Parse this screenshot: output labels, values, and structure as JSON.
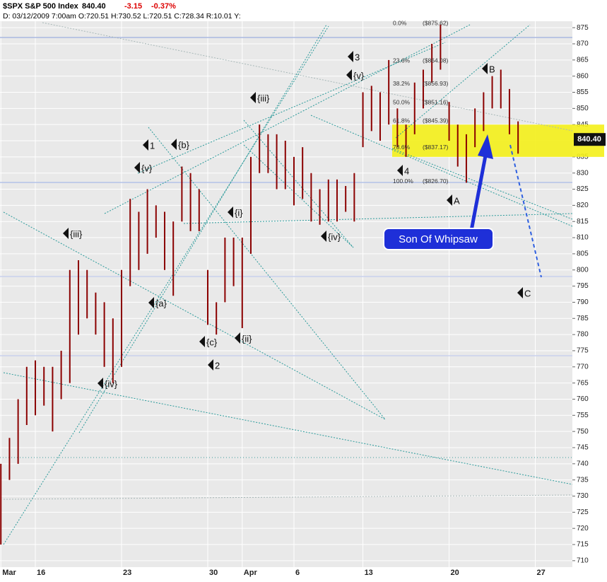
{
  "chart_data": {
    "type": "ohlc",
    "title": "$SPX S&P 500 Index",
    "last": "840.40",
    "change": "-3.15",
    "change_pct": "-0.37%",
    "info": "D: 03/12/2009  7:00am  O:720.51  H:730.52  L:720.51  C:728.34  R:10.01  Y:",
    "price_box": {
      "value": 840.4,
      "label": "840.40"
    },
    "callout": "Son Of Whipsaw",
    "color": "#8b0000",
    "x": [
      0,
      0.5,
      1,
      1.5,
      2,
      2.5,
      3,
      3.5,
      4,
      4.5,
      5,
      5.5,
      6,
      6.5,
      7,
      7.5,
      8,
      8.5,
      9,
      9.5,
      10,
      10.5,
      11,
      11.5,
      12,
      12.5,
      13,
      13.5,
      14,
      14.5,
      15,
      15.5,
      16,
      16.5,
      17,
      17.5,
      18,
      18.5,
      19,
      19.5,
      20,
      20.5,
      21,
      21.5,
      22,
      22.5,
      23,
      23.5,
      24,
      24.5,
      25,
      25.5,
      26,
      26.5,
      27,
      27.5,
      28,
      28.5,
      29,
      29.5,
      30
    ],
    "high": [
      740,
      748,
      760,
      770,
      772,
      770,
      770,
      775,
      800,
      803,
      800,
      793,
      790,
      785,
      800,
      822,
      818,
      825,
      820,
      818,
      815,
      832,
      830,
      825,
      800,
      790,
      810,
      810,
      810,
      835,
      845,
      842,
      842,
      840,
      835,
      838,
      830,
      825,
      828,
      828,
      826,
      830,
      855,
      857,
      855,
      865,
      850,
      845,
      858,
      862,
      870,
      876,
      852,
      845,
      842,
      850,
      855,
      860,
      862,
      856,
      846
    ],
    "low": [
      715,
      735,
      740,
      752,
      755,
      758,
      750,
      760,
      765,
      780,
      785,
      780,
      770,
      765,
      770,
      795,
      800,
      805,
      810,
      800,
      792,
      815,
      812,
      812,
      783,
      780,
      790,
      795,
      782,
      805,
      830,
      830,
      825,
      825,
      820,
      822,
      815,
      814,
      815,
      815,
      818,
      815,
      838,
      843,
      840,
      845,
      838,
      835,
      842,
      850,
      858,
      862,
      840,
      832,
      827,
      838,
      843,
      850,
      850,
      842,
      836
    ],
    "xlim": [
      -0.05,
      33.15
    ],
    "ylim": [
      708,
      877
    ],
    "xticks": [
      {
        "value": 0,
        "label": "Mar"
      },
      {
        "value": 2,
        "label": "16"
      },
      {
        "value": 7,
        "label": "23"
      },
      {
        "value": 12,
        "label": "30"
      },
      {
        "value": 14,
        "label": "Apr"
      },
      {
        "value": 17,
        "label": "6"
      },
      {
        "value": 21,
        "label": "13"
      },
      {
        "value": 26,
        "label": "20"
      },
      {
        "value": 31,
        "label": "27"
      }
    ],
    "yticks": [
      710,
      715,
      720,
      725,
      730,
      735,
      740,
      745,
      750,
      755,
      760,
      765,
      770,
      775,
      780,
      785,
      790,
      795,
      800,
      805,
      810,
      815,
      820,
      825,
      830,
      835,
      840,
      845,
      850,
      855,
      860,
      865,
      870,
      875
    ],
    "fib": [
      {
        "level": "0.0%",
        "value": 875.62,
        "label": "($875.62)"
      },
      {
        "level": "23.6%",
        "value": 864.08,
        "label": "($864.08)"
      },
      {
        "level": "38.2%",
        "value": 856.93,
        "label": "($856.93)"
      },
      {
        "level": "50.0%",
        "value": 851.16,
        "label": "($851.16)"
      },
      {
        "level": "61.8%",
        "value": 845.39,
        "label": "($845.39)"
      },
      {
        "level": "78.6%",
        "value": 837.17,
        "label": "($837.17)"
      },
      {
        "level": "100.0%",
        "value": 826.7,
        "label": "($826.70)"
      }
    ],
    "zone": [
      835,
      845
    ],
    "annotations": [
      "1",
      "{b}",
      "{v}",
      "{iii}",
      "{a}",
      "{iv}",
      "{c}",
      "2",
      "{i}",
      "{ii}",
      "{iii}",
      "{iv}",
      "3",
      "{v}",
      "4",
      "A",
      "B",
      "C"
    ]
  }
}
